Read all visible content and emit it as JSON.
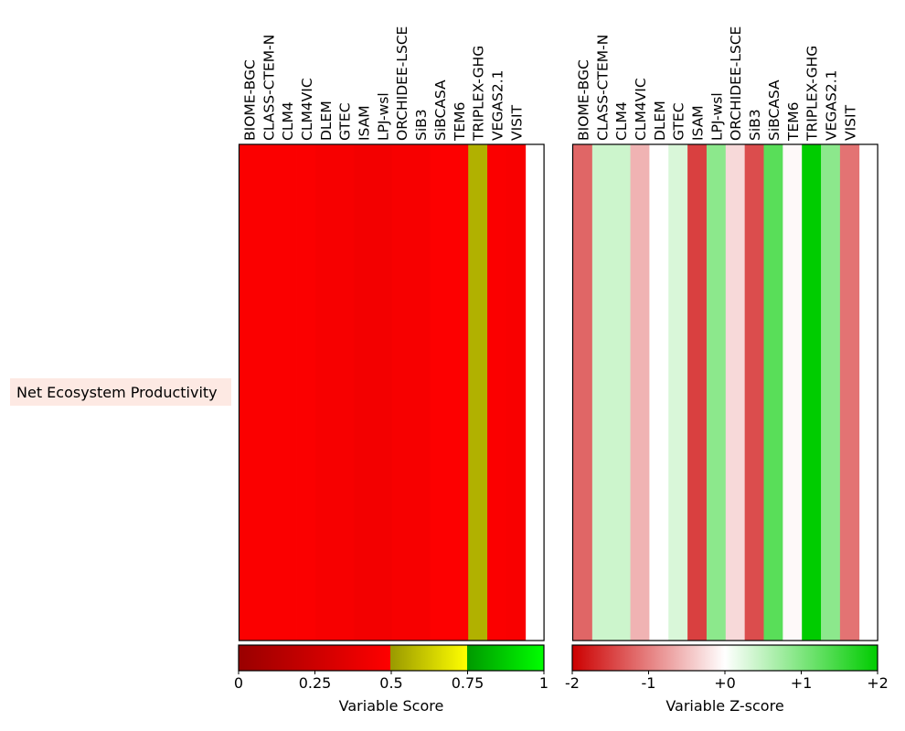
{
  "row_label": "Net Ecosystem Productivity",
  "models": [
    "BIOME-BGC",
    "CLASS-CTEM-N",
    "CLM4",
    "CLM4VIC",
    "DLEM",
    "GTEC",
    "ISAM",
    "LPJ-wsl",
    "ORCHIDEE-LSCE",
    "SiB3",
    "SiBCASA",
    "TEM6",
    "TRIPLEX-GHG",
    "VEGAS2.1",
    "VISIT"
  ],
  "chart_data": [
    {
      "type": "heatmap",
      "title": "",
      "rows": [
        "Net Ecosystem Productivity"
      ],
      "columns": [
        "BIOME-BGC",
        "CLASS-CTEM-N",
        "CLM4",
        "CLM4VIC",
        "DLEM",
        "GTEC",
        "ISAM",
        "LPJ-wsl",
        "ORCHIDEE-LSCE",
        "SiB3",
        "SiBCASA",
        "TEM6",
        "TRIPLEX-GHG",
        "VEGAS2.1",
        "VISIT"
      ],
      "values": [
        [
          0.48,
          0.48,
          0.48,
          0.48,
          0.46,
          0.46,
          0.44,
          0.44,
          0.46,
          0.46,
          0.49,
          0.49,
          0.56,
          0.48,
          0.47
        ]
      ],
      "empty_last_column": true,
      "colorbar": {
        "label": "Variable Score",
        "range": [
          0,
          1
        ],
        "ticks": [
          "0",
          "0.25",
          "0.5",
          "0.75",
          "1"
        ],
        "colors": [
          "#990000",
          "#ff0000",
          "#999900",
          "#ffff00",
          "#009900",
          "#00ff00"
        ]
      }
    },
    {
      "type": "heatmap",
      "title": "",
      "rows": [
        "Net Ecosystem Productivity"
      ],
      "columns": [
        "BIOME-BGC",
        "CLASS-CTEM-N",
        "CLM4",
        "CLM4VIC",
        "DLEM",
        "GTEC",
        "ISAM",
        "LPJ-wsl",
        "ORCHIDEE-LSCE",
        "SiB3",
        "SiBCASA",
        "TEM6",
        "TRIPLEX-GHG",
        "VEGAS2.1",
        "VISIT"
      ],
      "values": [
        [
          -1.2,
          0.4,
          0.4,
          -0.6,
          0.0,
          0.3,
          -1.5,
          0.9,
          -0.3,
          -1.4,
          1.3,
          -0.05,
          2.0,
          0.9,
          -1.1
        ]
      ],
      "empty_last_column": true,
      "colorbar": {
        "label": "Variable Z-score",
        "range": [
          -2,
          2
        ],
        "ticks": [
          "-2",
          "-1",
          "+0",
          "+1",
          "+2"
        ],
        "colors": [
          "#cc0000",
          "#ffffff",
          "#00cc00"
        ]
      }
    }
  ]
}
